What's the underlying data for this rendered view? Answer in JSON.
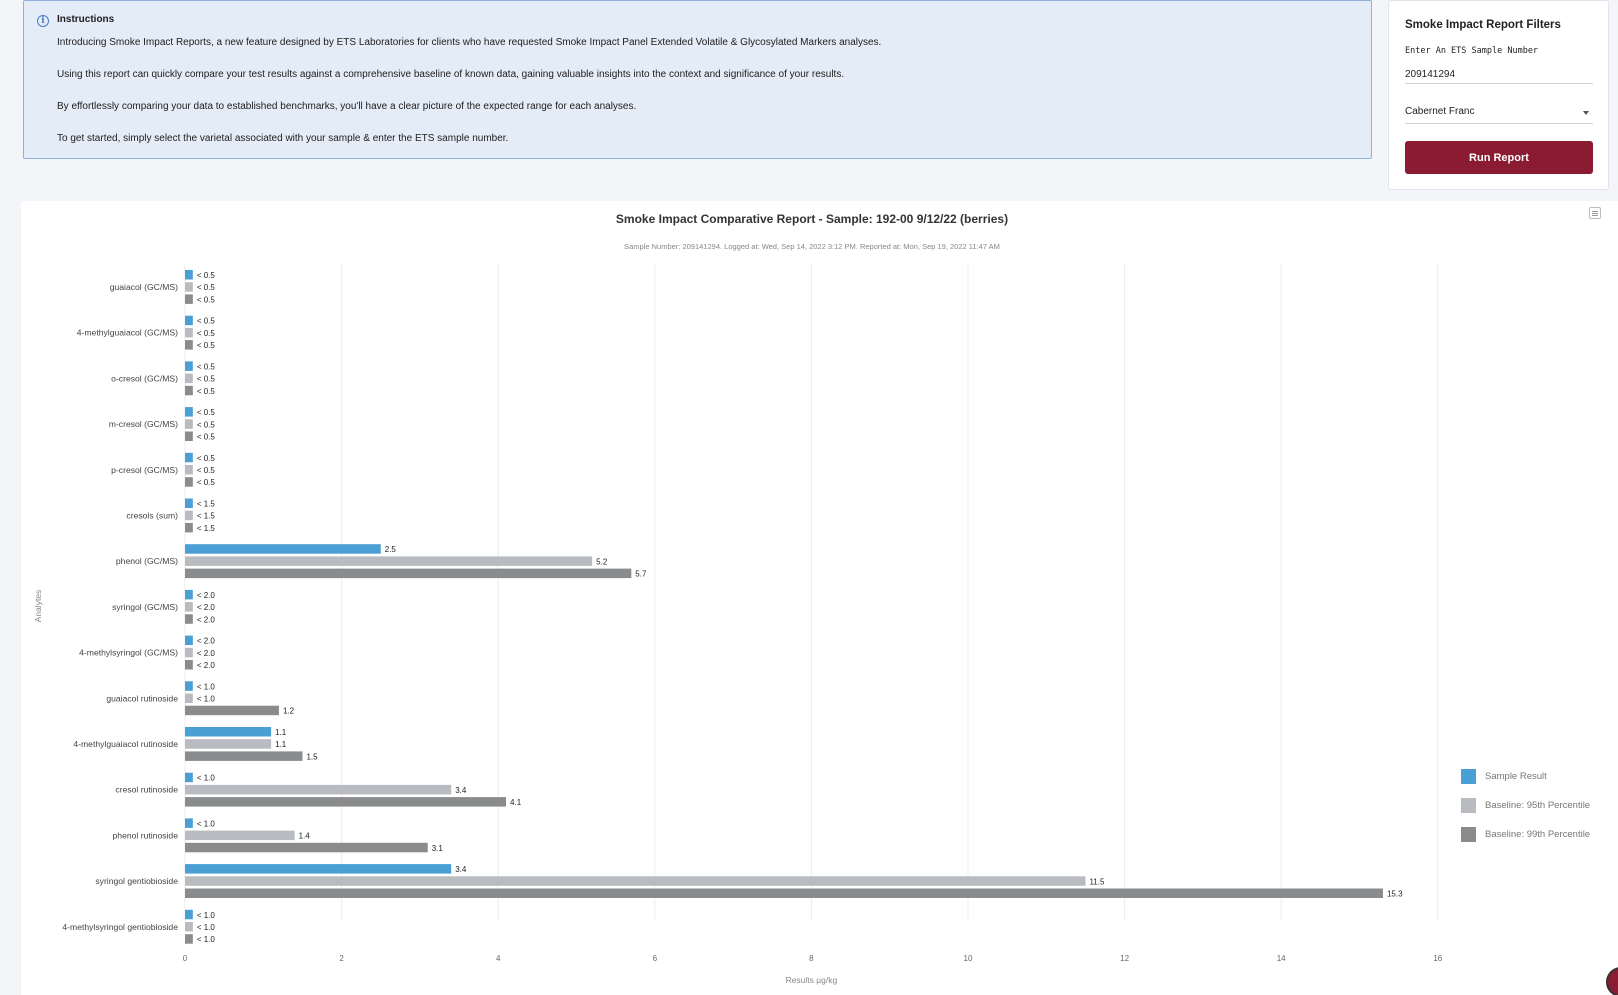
{
  "instructions": {
    "title": "Instructions",
    "paragraphs": [
      "Introducing Smoke Impact Reports, a new feature designed by ETS Laboratories for clients who have requested Smoke Impact Panel Extended Volatile & Glycosylated Markers analyses.",
      "Using this report can quickly compare your test results against a comprehensive baseline of known data, gaining valuable insights into the context and significance of your results.",
      "By effortlessly comparing your data to established benchmarks, you'll have a clear picture of the expected range for each analyses.",
      "To get started, simply select the varietal associated with your sample & enter the ETS sample number."
    ]
  },
  "filters": {
    "title": "Smoke Impact Report Filters",
    "sample_label": "Enter An ETS Sample Number",
    "sample_value": "209141294",
    "varietal": "Cabernet Franc",
    "run_button": "Run Report"
  },
  "chart_data": {
    "type": "bar",
    "orientation": "horizontal",
    "title": "Smoke Impact Comparative Report - Sample: 192-00 9/12/22 (berries)",
    "subtitle": "Sample Number: 209141294. Logged at: Wed, Sep 14, 2022 3:12 PM. Reported at: Mon, Sep 19, 2022 11:47 AM",
    "xlabel": "Results µg/kg",
    "ylabel": "Analytes",
    "xlim": [
      0,
      16
    ],
    "xticks": [
      "0",
      "2",
      "4",
      "6",
      "8",
      "10",
      "12",
      "14",
      "16"
    ],
    "grid": "vertical",
    "legend_position": "right",
    "categories": [
      "guaiacol (GC/MS)",
      "4-methylguaiacol (GC/MS)",
      "o-cresol (GC/MS)",
      "m-cresol (GC/MS)",
      "p-cresol (GC/MS)",
      "cresols (sum)",
      "phenol (GC/MS)",
      "syringol (GC/MS)",
      "4-methylsyringol (GC/MS)",
      "guaiacol rutinoside",
      "4-methylguaiacol rutinoside",
      "cresol rutinoside",
      "phenol rutinoside",
      "syringol gentiobioside",
      "4-methylsyringol gentiobioside"
    ],
    "series": [
      {
        "name": "Sample Result",
        "color": "#4a9fd4",
        "values": [
          0.1,
          0.1,
          0.1,
          0.1,
          0.1,
          0.1,
          2.5,
          0.1,
          0.1,
          0.1,
          1.1,
          0.1,
          0.1,
          3.4,
          0.1
        ],
        "labels": [
          "< 0.5",
          "< 0.5",
          "< 0.5",
          "< 0.5",
          "< 0.5",
          "< 1.5",
          "2.5",
          "< 2.0",
          "< 2.0",
          "< 1.0",
          "1.1",
          "< 1.0",
          "< 1.0",
          "3.4",
          "< 1.0"
        ]
      },
      {
        "name": "Baseline: 95th Percentile",
        "color": "#b8bbbf",
        "values": [
          0.1,
          0.1,
          0.1,
          0.1,
          0.1,
          0.1,
          5.2,
          0.1,
          0.1,
          0.1,
          1.1,
          3.4,
          1.4,
          11.5,
          0.1
        ],
        "labels": [
          "< 0.5",
          "< 0.5",
          "< 0.5",
          "< 0.5",
          "< 0.5",
          "< 1.5",
          "5.2",
          "< 2.0",
          "< 2.0",
          "< 1.0",
          "1.1",
          "3.4",
          "1.4",
          "11.5",
          "< 1.0"
        ]
      },
      {
        "name": "Baseline: 99th Percentile",
        "color": "#8a8b8d",
        "values": [
          0.1,
          0.1,
          0.1,
          0.1,
          0.1,
          0.1,
          5.7,
          0.1,
          0.1,
          1.2,
          1.5,
          4.1,
          3.1,
          15.3,
          0.1
        ],
        "labels": [
          "< 0.5",
          "< 0.5",
          "< 0.5",
          "< 0.5",
          "< 0.5",
          "< 1.5",
          "5.7",
          "< 2.0",
          "< 2.0",
          "1.2",
          "1.5",
          "4.1",
          "3.1",
          "15.3",
          "< 1.0"
        ]
      }
    ]
  }
}
